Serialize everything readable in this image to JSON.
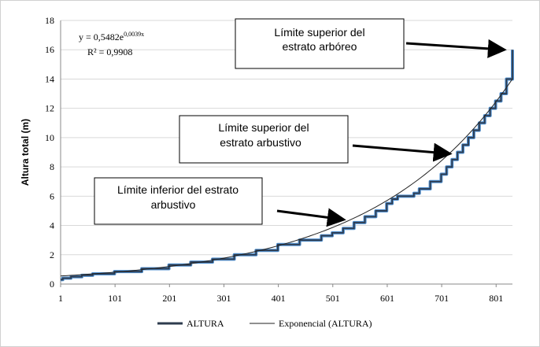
{
  "chart_data": {
    "type": "line",
    "title": "",
    "xlabel": "",
    "ylabel": "Altura total (m)",
    "xlim": [
      1,
      831
    ],
    "ylim": [
      0,
      18
    ],
    "x_ticks": [
      "1",
      "101",
      "201",
      "301",
      "401",
      "501",
      "601",
      "701",
      "801"
    ],
    "y_ticks": [
      "0",
      "2",
      "4",
      "6",
      "8",
      "10",
      "12",
      "14",
      "16",
      "18"
    ],
    "grid": "horizontal",
    "legend_position": "bottom",
    "equation": {
      "line1_prefix": "y = 0,5482e",
      "line1_exponent": "0,0039x",
      "line2": "R² = 0,9908"
    },
    "series": [
      {
        "name": "ALTURA",
        "color": "#2e3b4e",
        "marker_color": "#4f8fcf",
        "x": [
          1,
          5,
          20,
          40,
          60,
          100,
          150,
          200,
          240,
          280,
          320,
          360,
          400,
          440,
          480,
          500,
          520,
          540,
          560,
          580,
          600,
          610,
          620,
          640,
          650,
          660,
          680,
          690,
          700,
          710,
          720,
          730,
          740,
          750,
          760,
          770,
          780,
          790,
          800,
          810,
          820,
          831
        ],
        "y": [
          0.3,
          0.4,
          0.5,
          0.6,
          0.7,
          0.85,
          1.05,
          1.3,
          1.5,
          1.7,
          2.0,
          2.3,
          2.7,
          3.0,
          3.3,
          3.5,
          3.8,
          4.2,
          4.6,
          5.0,
          5.5,
          5.8,
          6.0,
          6.0,
          6.2,
          6.5,
          7.0,
          7.0,
          7.5,
          8.0,
          8.5,
          9.0,
          9.5,
          10.0,
          10.5,
          11.0,
          11.5,
          12.0,
          12.5,
          13.0,
          14.0,
          16.0
        ]
      },
      {
        "name": "Exponencial (ALTURA)",
        "color": "#222222",
        "type": "exp_trend",
        "a": 0.5482,
        "b": 0.0039
      }
    ],
    "annotations": [
      {
        "text_line1": "Límite  superior del",
        "text_line2": "estrato arbóreo",
        "target_x": 825,
        "target_y": 16.0
      },
      {
        "text_line1": "Límite  superior del",
        "text_line2": "estrato arbustivo",
        "target_x": 725,
        "target_y": 8.9
      },
      {
        "text_line1": "Límite  inferior del estrato",
        "text_line2": "arbustivo",
        "target_x": 530,
        "target_y": 4.4
      }
    ]
  }
}
